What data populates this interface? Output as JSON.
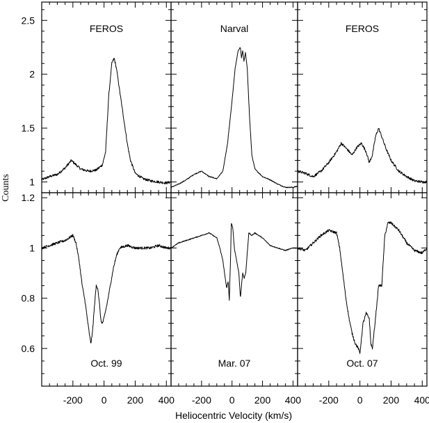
{
  "chart_data": {
    "type": "line",
    "xlabel": "Heliocentric Velocity (km/s)",
    "ylabel": "Counts",
    "xlim": [
      -400,
      430
    ],
    "x_ticks": [
      -200,
      0,
      200,
      400
    ],
    "x_tick_labels": [
      "-200",
      "0",
      "200",
      "400"
    ],
    "columns": [
      "FEROS",
      "Narval",
      "FEROS"
    ],
    "dates": [
      "Oct. 99",
      "Mar. 07",
      "Oct. 07"
    ],
    "rows": [
      {
        "ylim": [
          0.9,
          2.67
        ],
        "y_ticks": [
          1,
          1.5,
          2,
          2.5
        ],
        "y_tick_labels": [
          "1",
          "1.5",
          "2",
          "2.5"
        ],
        "panels": [
          {
            "label": "FEROS",
            "x": [
              -400,
              -350,
              -300,
              -250,
              -210,
              -180,
              -150,
              -100,
              -50,
              -10,
              10,
              30,
              50,
              65,
              80,
              90,
              110,
              130,
              150,
              170,
              200,
              250,
              300,
              350,
              400,
              430
            ],
            "y": [
              1.02,
              1.05,
              1.07,
              1.13,
              1.2,
              1.16,
              1.12,
              1.1,
              1.11,
              1.16,
              1.28,
              1.8,
              2.1,
              2.15,
              2.05,
              1.95,
              1.75,
              1.55,
              1.35,
              1.2,
              1.08,
              1.03,
              1.01,
              1.0,
              0.99,
              1.0
            ]
          },
          {
            "label": "Narval",
            "x": [
              -400,
              -350,
              -300,
              -250,
              -200,
              -150,
              -100,
              -60,
              -30,
              0,
              20,
              40,
              55,
              62,
              70,
              78,
              88,
              100,
              115,
              130,
              150,
              200,
              250,
              300,
              350,
              400,
              430
            ],
            "y": [
              0.95,
              0.98,
              1.02,
              1.07,
              1.1,
              1.05,
              1.03,
              1.1,
              1.35,
              1.75,
              2.05,
              2.22,
              2.25,
              2.15,
              2.22,
              2.12,
              2.2,
              2.05,
              1.6,
              1.25,
              1.12,
              1.05,
              1.02,
              0.98,
              0.95,
              0.95,
              0.96
            ]
          },
          {
            "label": "FEROS",
            "x": [
              -400,
              -350,
              -300,
              -250,
              -200,
              -150,
              -120,
              -80,
              -50,
              -20,
              10,
              40,
              60,
              80,
              100,
              120,
              140,
              170,
              200,
              250,
              300,
              350,
              400,
              430
            ],
            "y": [
              1.1,
              1.08,
              1.05,
              1.1,
              1.18,
              1.28,
              1.36,
              1.3,
              1.25,
              1.32,
              1.36,
              1.28,
              1.18,
              1.25,
              1.42,
              1.5,
              1.42,
              1.3,
              1.2,
              1.1,
              1.05,
              1.01,
              1.0,
              1.0
            ]
          }
        ]
      },
      {
        "ylim": [
          0.45,
          1.22
        ],
        "y_ticks": [
          0.6,
          0.8,
          1,
          1.2
        ],
        "y_tick_labels": [
          "0.6",
          "0.8",
          "1",
          "1.2"
        ],
        "panels": [
          {
            "label": "Oct. 99",
            "x": [
              -400,
              -350,
              -300,
              -250,
              -200,
              -180,
              -160,
              -140,
              -120,
              -110,
              -95,
              -85,
              -75,
              -60,
              -50,
              -40,
              -30,
              -20,
              -10,
              0,
              20,
              40,
              60,
              80,
              100,
              150,
              200,
              250,
              300,
              350,
              400,
              430
            ],
            "y": [
              1.0,
              1.01,
              1.02,
              1.03,
              1.05,
              1.02,
              0.95,
              0.85,
              0.78,
              0.73,
              0.66,
              0.62,
              0.66,
              0.78,
              0.85,
              0.84,
              0.78,
              0.71,
              0.7,
              0.72,
              0.78,
              0.85,
              0.92,
              0.97,
              1.0,
              1.01,
              1.0,
              1.0,
              1.0,
              1.01,
              1.0,
              1.0
            ]
          },
          {
            "label": "Mar. 07",
            "x": [
              -400,
              -350,
              -300,
              -250,
              -200,
              -150,
              -100,
              -80,
              -60,
              -45,
              -35,
              -25,
              -18,
              -10,
              -5,
              5,
              15,
              30,
              45,
              55,
              62,
              70,
              80,
              90,
              100,
              110,
              130,
              150,
              200,
              250,
              300,
              350,
              400,
              430
            ],
            "y": [
              1.0,
              1.02,
              1.03,
              1.04,
              1.05,
              1.06,
              1.04,
              1.0,
              0.95,
              0.88,
              0.84,
              0.87,
              0.79,
              0.95,
              1.1,
              1.08,
              1.0,
              0.95,
              0.9,
              0.8,
              0.85,
              0.9,
              0.88,
              0.9,
              0.98,
              1.06,
              1.05,
              1.06,
              1.04,
              1.01,
              1.0,
              0.99,
              1.0,
              1.0
            ]
          },
          {
            "label": "Oct. 07",
            "x": [
              -400,
              -350,
              -300,
              -250,
              -200,
              -150,
              -130,
              -110,
              -90,
              -70,
              -50,
              -30,
              -10,
              0,
              20,
              40,
              60,
              70,
              80,
              100,
              120,
              140,
              160,
              180,
              200,
              250,
              300,
              350,
              400,
              430
            ],
            "y": [
              1.0,
              0.99,
              1.02,
              1.05,
              1.07,
              1.06,
              1.0,
              0.9,
              0.8,
              0.72,
              0.66,
              0.62,
              0.6,
              0.58,
              0.7,
              0.74,
              0.72,
              0.62,
              0.6,
              0.72,
              0.85,
              0.85,
              1.05,
              1.1,
              1.1,
              1.07,
              1.02,
              0.99,
              0.98,
              1.0
            ]
          }
        ]
      }
    ]
  }
}
